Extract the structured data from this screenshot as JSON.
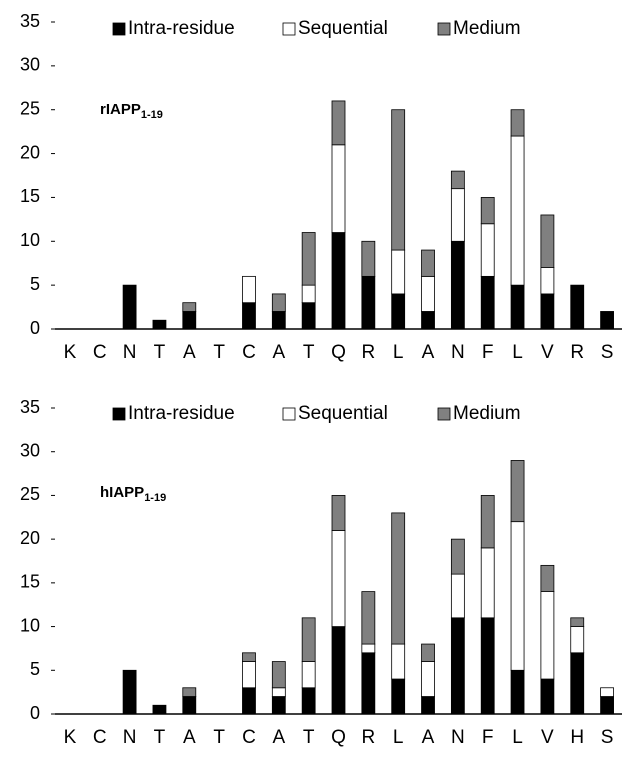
{
  "chart_data": [
    {
      "type": "stacked_bar",
      "annotation": {
        "text": "rIAPP",
        "subscript": "1-19"
      },
      "categories": [
        "K",
        "C",
        "N",
        "T",
        "A",
        "T",
        "C",
        "A",
        "T",
        "Q",
        "R",
        "L",
        "A",
        "N",
        "F",
        "L",
        "V",
        "R",
        "S"
      ],
      "series": [
        {
          "name": "Intra-residue",
          "color": "#000000",
          "values": [
            0,
            0,
            5,
            1,
            2,
            0,
            3,
            2,
            3,
            11,
            6,
            4,
            2,
            10,
            6,
            5,
            4,
            5,
            2
          ]
        },
        {
          "name": "Sequential",
          "color": "#ffffff",
          "values": [
            0,
            0,
            0,
            0,
            0,
            0,
            3,
            0,
            2,
            10,
            0,
            5,
            4,
            6,
            6,
            17,
            3,
            0,
            0
          ]
        },
        {
          "name": "Medium",
          "color": "#808080",
          "values": [
            0,
            0,
            0,
            0,
            1,
            0,
            0,
            2,
            6,
            5,
            4,
            16,
            3,
            2,
            3,
            3,
            6,
            0,
            0
          ]
        }
      ],
      "ylim": [
        0,
        35
      ],
      "yticks": [
        0,
        5,
        10,
        15,
        20,
        25,
        30,
        35
      ]
    },
    {
      "type": "stacked_bar",
      "annotation": {
        "text": "hIAPP",
        "subscript": "1-19"
      },
      "categories": [
        "K",
        "C",
        "N",
        "T",
        "A",
        "T",
        "C",
        "A",
        "T",
        "Q",
        "R",
        "L",
        "A",
        "N",
        "F",
        "L",
        "V",
        "H",
        "S"
      ],
      "series": [
        {
          "name": "Intra-residue",
          "color": "#000000",
          "values": [
            0,
            0,
            5,
            1,
            2,
            0,
            3,
            2,
            3,
            10,
            7,
            4,
            2,
            11,
            11,
            5,
            4,
            7,
            2
          ]
        },
        {
          "name": "Sequential",
          "color": "#ffffff",
          "values": [
            0,
            0,
            0,
            0,
            0,
            0,
            3,
            1,
            3,
            11,
            1,
            4,
            4,
            5,
            8,
            17,
            10,
            3,
            1
          ]
        },
        {
          "name": "Medium",
          "color": "#808080",
          "values": [
            0,
            0,
            0,
            0,
            1,
            0,
            1,
            3,
            5,
            4,
            6,
            15,
            2,
            4,
            6,
            7,
            3,
            1,
            0
          ]
        }
      ],
      "ylim": [
        0,
        35
      ],
      "yticks": [
        0,
        5,
        10,
        15,
        20,
        25,
        30,
        35
      ]
    }
  ]
}
